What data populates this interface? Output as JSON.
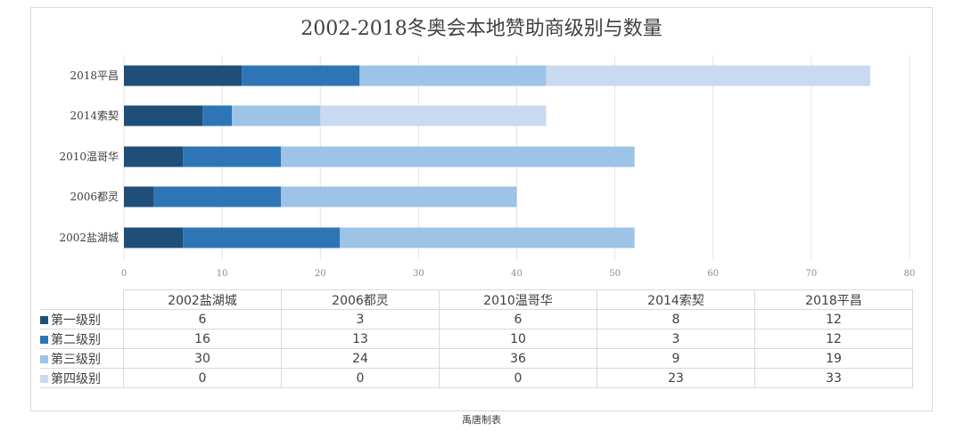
{
  "chart_data": {
    "type": "bar",
    "orientation": "horizontal",
    "stacked": true,
    "title": "2002-2018冬奥会本地赞助商级别与数量",
    "categories": [
      "2002盐湖城",
      "2006都灵",
      "2010温哥华",
      "2014索契",
      "2018平昌"
    ],
    "series": [
      {
        "name": "第一级别",
        "values": [
          6,
          3,
          6,
          8,
          12
        ],
        "color": "#1f4e79"
      },
      {
        "name": "第二级别",
        "values": [
          16,
          13,
          10,
          3,
          12
        ],
        "color": "#2e75b6"
      },
      {
        "name": "第三级别",
        "values": [
          30,
          24,
          36,
          9,
          19
        ],
        "color": "#9dc3e6"
      },
      {
        "name": "第四级别",
        "values": [
          0,
          0,
          0,
          23,
          33
        ],
        "color": "#c9daf0"
      }
    ],
    "xlim": [
      0,
      80
    ],
    "xticks": [
      "0",
      "10",
      "20",
      "30",
      "40",
      "50",
      "60",
      "70",
      "80"
    ],
    "grid": true,
    "legend": "data-table-below"
  },
  "footer": "禹唐制表"
}
